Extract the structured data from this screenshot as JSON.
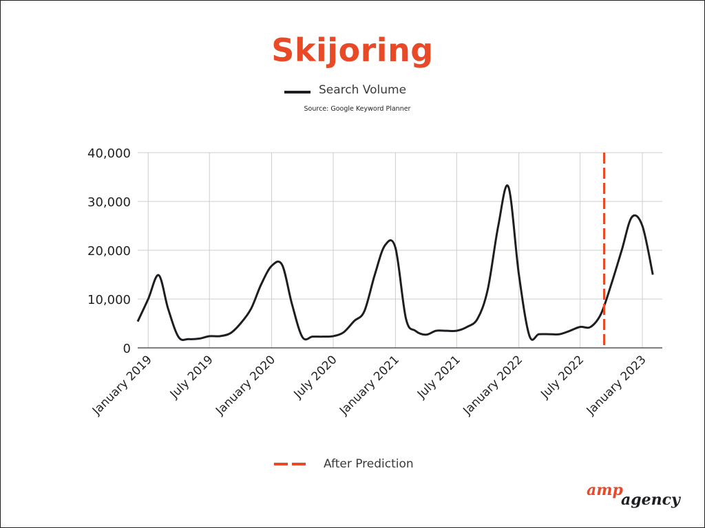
{
  "chart_data": {
    "type": "line",
    "title": "Skijoring",
    "subtitle": "Source: Google Keyword Planner",
    "xlabel": "",
    "ylabel": "",
    "ylim": [
      0,
      40000
    ],
    "xlim": [
      "2018-12-01",
      "2023-03-01"
    ],
    "yticks": [
      0,
      10000,
      20000,
      30000,
      40000
    ],
    "ytick_labels": [
      "0",
      "10,000",
      "20,000",
      "30,000",
      "40,000"
    ],
    "xticks": [
      "2019-01-01",
      "2019-07-01",
      "2020-01-01",
      "2020-07-01",
      "2021-01-01",
      "2021-07-01",
      "2022-01-01",
      "2022-07-01",
      "2023-01-01"
    ],
    "xtick_labels": [
      "January 2019",
      "July 2019",
      "January 2020",
      "July 2020",
      "January 2021",
      "July 2021",
      "January 2022",
      "July 2022",
      "January 2023"
    ],
    "grid": true,
    "legend_position": "top-center",
    "series": [
      {
        "name": "Search Volume",
        "color": "#1c1e22",
        "points": [
          [
            "2018-12-01",
            5400
          ],
          [
            "2019-01-01",
            10000
          ],
          [
            "2019-02-01",
            14900
          ],
          [
            "2019-03-01",
            8000
          ],
          [
            "2019-04-01",
            2200
          ],
          [
            "2019-05-01",
            1800
          ],
          [
            "2019-06-01",
            1900
          ],
          [
            "2019-07-01",
            2400
          ],
          [
            "2019-08-01",
            2400
          ],
          [
            "2019-09-01",
            3000
          ],
          [
            "2019-10-01",
            5000
          ],
          [
            "2019-11-01",
            8000
          ],
          [
            "2019-12-01",
            13000
          ],
          [
            "2020-01-01",
            16800
          ],
          [
            "2020-02-01",
            17000
          ],
          [
            "2020-03-01",
            9000
          ],
          [
            "2020-04-01",
            2200
          ],
          [
            "2020-05-01",
            2300
          ],
          [
            "2020-06-01",
            2300
          ],
          [
            "2020-07-01",
            2400
          ],
          [
            "2020-08-01",
            3200
          ],
          [
            "2020-09-01",
            5500
          ],
          [
            "2020-10-01",
            7500
          ],
          [
            "2020-11-01",
            15000
          ],
          [
            "2020-12-01",
            21000
          ],
          [
            "2021-01-01",
            20500
          ],
          [
            "2021-02-01",
            6000
          ],
          [
            "2021-03-01",
            3500
          ],
          [
            "2021-04-01",
            2700
          ],
          [
            "2021-05-01",
            3500
          ],
          [
            "2021-06-01",
            3500
          ],
          [
            "2021-07-01",
            3500
          ],
          [
            "2021-08-01",
            4300
          ],
          [
            "2021-09-01",
            6000
          ],
          [
            "2021-10-01",
            12000
          ],
          [
            "2021-11-01",
            25000
          ],
          [
            "2021-12-01",
            33000
          ],
          [
            "2022-01-01",
            15000
          ],
          [
            "2022-02-01",
            2500
          ],
          [
            "2022-03-01",
            2800
          ],
          [
            "2022-04-01",
            2800
          ],
          [
            "2022-05-01",
            2800
          ],
          [
            "2022-06-01",
            3500
          ],
          [
            "2022-07-01",
            4300
          ],
          [
            "2022-08-01",
            4300
          ],
          [
            "2022-09-01",
            7000
          ],
          [
            "2022-10-01",
            13000
          ],
          [
            "2022-11-01",
            20000
          ],
          [
            "2022-12-01",
            26800
          ],
          [
            "2023-01-01",
            25000
          ],
          [
            "2023-02-01",
            15000
          ]
        ]
      }
    ],
    "annotations": [
      {
        "type": "vertical-dashed-line",
        "x": "2022-09-10",
        "label": "After Prediction",
        "color": "#e84a27"
      }
    ]
  },
  "legend": {
    "series_label": "Search Volume",
    "prediction_label": "After Prediction"
  },
  "logo": {
    "part1": "amp",
    "part2": "agency"
  },
  "colors": {
    "accent": "#e84a27",
    "line": "#1c1e22",
    "grid": "#cccccc"
  }
}
